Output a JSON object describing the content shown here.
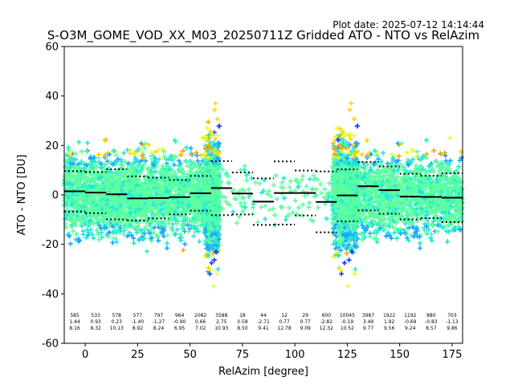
{
  "chart_data": {
    "type": "scatter",
    "plot_date": "Plot date: 2025-07-12 14:14:44",
    "title": "S-O3M_GOME_VOD_XX_M03_20250711Z Gridded ATO - NTO vs RelAzim",
    "xlabel": "RelAzim [degree]",
    "ylabel": "ATO - NTO [DU]",
    "xlim": [
      -10,
      180
    ],
    "ylim": [
      -60,
      60
    ],
    "xticks": [
      0,
      25,
      50,
      75,
      100,
      125,
      150,
      175
    ],
    "yticks": [
      -60,
      -40,
      -20,
      0,
      20,
      40,
      60
    ],
    "grid": false,
    "point_colors": [
      "#5cffa0",
      "#1fe8d8",
      "#1aa8ff",
      "#e8ff30",
      "#ffd400",
      "#ffa800",
      "#0a3cff"
    ],
    "density": [
      {
        "x0": -10,
        "x1": 63,
        "center": 0,
        "spread": 14,
        "count": 2600
      },
      {
        "x0": 57,
        "x1": 64,
        "center": 0,
        "spread": 22,
        "count": 900
      },
      {
        "x0": 64,
        "x1": 118,
        "center": 0,
        "spread": 10,
        "count": 130
      },
      {
        "x0": 118,
        "x1": 180,
        "center": 0,
        "spread": 14,
        "count": 2600
      },
      {
        "x0": 118,
        "x1": 130,
        "center": 0,
        "spread": 22,
        "count": 800
      }
    ],
    "bins": [
      {
        "x0": -10,
        "x1": 0,
        "n": "585",
        "mean": 1.44,
        "std": 8.16
      },
      {
        "x0": 0,
        "x1": 10,
        "n": "533",
        "mean": 0.93,
        "std": 8.32
      },
      {
        "x0": 10,
        "x1": 20,
        "n": "578",
        "mean": 0.23,
        "std": 10.13
      },
      {
        "x0": 20,
        "x1": 30,
        "n": "577",
        "mean": -1.4,
        "std": 8.92
      },
      {
        "x0": 30,
        "x1": 40,
        "n": "797",
        "mean": -1.27,
        "std": 8.24
      },
      {
        "x0": 40,
        "x1": 50,
        "n": "964",
        "mean": -0.9,
        "std": 6.95
      },
      {
        "x0": 50,
        "x1": 60,
        "n": "2082",
        "mean": 0.66,
        "std": 7.02
      },
      {
        "x0": 60,
        "x1": 70,
        "n": "3588",
        "mean": 2.75,
        "std": 10.93
      },
      {
        "x0": 70,
        "x1": 80,
        "n": "18",
        "mean": 0.58,
        "std": 8.5
      },
      {
        "x0": 80,
        "x1": 90,
        "n": "44",
        "mean": -2.71,
        "std": 9.41
      },
      {
        "x0": 90,
        "x1": 100,
        "n": "12",
        "mean": 0.77,
        "std": 12.78
      },
      {
        "x0": 100,
        "x1": 110,
        "n": "29",
        "mean": 0.77,
        "std": 9.09
      },
      {
        "x0": 110,
        "x1": 120,
        "n": "600",
        "mean": -2.82,
        "std": 12.32
      },
      {
        "x0": 120,
        "x1": 130,
        "n": "10045",
        "mean": -0.19,
        "std": 10.52
      },
      {
        "x0": 130,
        "x1": 140,
        "n": "3987",
        "mean": 3.49,
        "std": 9.77
      },
      {
        "x0": 140,
        "x1": 150,
        "n": "1922",
        "mean": 1.92,
        "std": 9.56
      },
      {
        "x0": 150,
        "x1": 160,
        "n": "1192",
        "mean": -0.69,
        "std": 9.24
      },
      {
        "x0": 160,
        "x1": 170,
        "n": "880",
        "mean": -0.83,
        "std": 8.57
      },
      {
        "x0": 170,
        "x1": 180,
        "n": "703",
        "mean": -1.13,
        "std": 9.86
      }
    ]
  }
}
